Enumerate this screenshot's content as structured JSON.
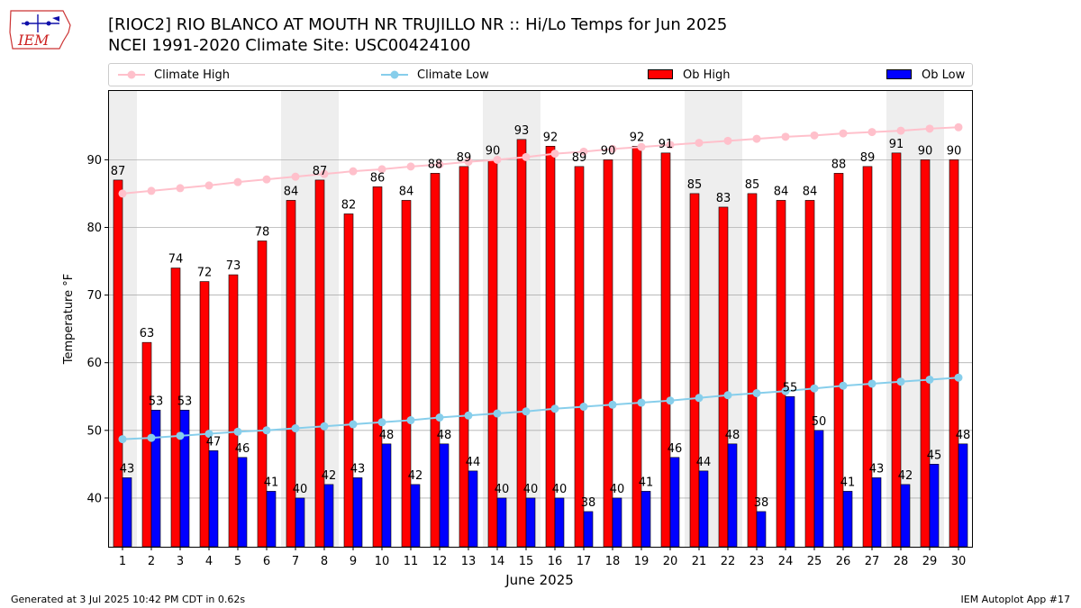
{
  "header": {
    "title_line1": "[RIOC2] RIO BLANCO AT MOUTH NR TRUJILLO NR :: Hi/Lo Temps for Jun 2025",
    "title_line2": "NCEI 1991-2020 Climate Site: USC00424100",
    "logo_text": "IEM"
  },
  "legend": {
    "climate_high": "Climate High",
    "climate_low": "Climate Low",
    "ob_high": "Ob High",
    "ob_low": "Ob Low"
  },
  "footer": {
    "generated": "Generated at 3 Jul 2025 10:42 PM CDT in 0.62s",
    "app": "IEM Autoplot App #17"
  },
  "colors": {
    "ob_high": "#ff0000",
    "ob_low": "#0000ff",
    "climate_high": "#ffc0cb",
    "climate_low": "#87ceeb",
    "weekend_shade": "#eeeeee",
    "grid": "#b0b0b0"
  },
  "chart_data": {
    "type": "bar",
    "xlabel": "June 2025",
    "ylabel": "Temperature $^\\circ$F",
    "ylim": [
      32.8,
      100.3
    ],
    "yticks": [
      40,
      50,
      60,
      70,
      80,
      90
    ],
    "grid": "horizontal",
    "legend_position": "top",
    "categories": [
      "1",
      "2",
      "3",
      "4",
      "5",
      "6",
      "7",
      "8",
      "9",
      "10",
      "11",
      "12",
      "13",
      "14",
      "15",
      "16",
      "17",
      "18",
      "19",
      "20",
      "21",
      "22",
      "23",
      "24",
      "25",
      "26",
      "27",
      "28",
      "29",
      "30"
    ],
    "shaded_days": [
      1,
      7,
      8,
      14,
      15,
      21,
      22,
      28,
      29
    ],
    "series": [
      {
        "name": "Ob High",
        "kind": "bar",
        "values": [
          87,
          63,
          74,
          72,
          73,
          78,
          84,
          87,
          82,
          86,
          84,
          88,
          89,
          90,
          93,
          92,
          89,
          90,
          92,
          91,
          85,
          83,
          85,
          84,
          84,
          88,
          89,
          91,
          90,
          90
        ]
      },
      {
        "name": "Ob Low",
        "kind": "bar",
        "values": [
          43,
          53,
          53,
          47,
          46,
          41,
          40,
          42,
          43,
          48,
          42,
          48,
          44,
          40,
          40,
          40,
          38,
          40,
          41,
          46,
          44,
          48,
          38,
          55,
          50,
          41,
          43,
          42,
          45,
          48
        ]
      },
      {
        "name": "Climate High",
        "kind": "line",
        "values": [
          85.0,
          85.4,
          85.8,
          86.2,
          86.7,
          87.1,
          87.5,
          87.9,
          88.3,
          88.6,
          89.0,
          89.3,
          89.7,
          90.0,
          90.4,
          90.9,
          91.2,
          91.6,
          91.9,
          92.2,
          92.5,
          92.8,
          93.1,
          93.4,
          93.6,
          93.9,
          94.1,
          94.3,
          94.6,
          94.8
        ]
      },
      {
        "name": "Climate Low",
        "kind": "line",
        "values": [
          48.7,
          48.9,
          49.2,
          49.5,
          49.8,
          50.0,
          50.3,
          50.6,
          50.9,
          51.2,
          51.5,
          51.9,
          52.2,
          52.5,
          52.8,
          53.2,
          53.5,
          53.8,
          54.1,
          54.4,
          54.8,
          55.2,
          55.5,
          55.8,
          56.2,
          56.6,
          56.9,
          57.2,
          57.5,
          57.8
        ]
      }
    ]
  }
}
